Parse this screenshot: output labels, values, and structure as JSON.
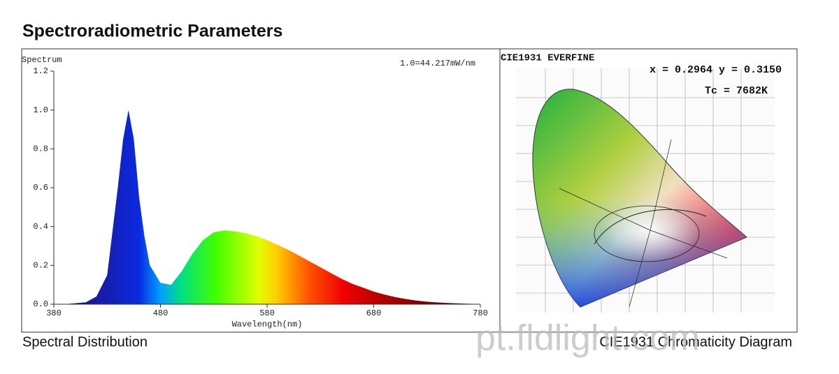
{
  "title": "Spectroradiometric Parameters",
  "chart_data": {
    "type": "area",
    "y_label": "Spectrum",
    "x_label": "Wavelength(nm)",
    "annotation": "1.0=44.217mW/nm",
    "caption": "Spectral Distribution",
    "x": [
      380,
      390,
      400,
      410,
      420,
      430,
      440,
      445,
      450,
      455,
      460,
      465,
      470,
      480,
      490,
      500,
      510,
      520,
      530,
      540,
      550,
      560,
      570,
      580,
      590,
      600,
      610,
      620,
      630,
      640,
      650,
      660,
      670,
      680,
      690,
      700,
      710,
      720,
      730,
      740,
      750,
      760,
      770,
      780
    ],
    "values": [
      0,
      0,
      0.005,
      0.01,
      0.04,
      0.15,
      0.6,
      0.85,
      1.0,
      0.85,
      0.55,
      0.35,
      0.2,
      0.11,
      0.1,
      0.17,
      0.26,
      0.33,
      0.37,
      0.38,
      0.375,
      0.365,
      0.35,
      0.33,
      0.305,
      0.28,
      0.25,
      0.22,
      0.19,
      0.16,
      0.13,
      0.105,
      0.085,
      0.065,
      0.05,
      0.037,
      0.027,
      0.019,
      0.013,
      0.009,
      0.006,
      0.004,
      0.002,
      0.001
    ],
    "xlim": [
      380,
      780
    ],
    "xticks": [
      380,
      480,
      580,
      680,
      780
    ],
    "ylim": [
      0,
      1.2
    ],
    "yticks": [
      {
        "value": 0,
        "label": "0.0"
      },
      0.2,
      0.4,
      0.6,
      0.8,
      {
        "value": 1,
        "label": "1.0"
      },
      1.2
    ]
  },
  "chromaticity": {
    "title": "CIE1931 EVERFINE",
    "coordinates": "x = 0.2964 y = 0.3150",
    "cct": "Tc = 7682K",
    "caption": "CIE1931 Chromaticity Diagram"
  },
  "watermark": "pt.fldlight.com"
}
